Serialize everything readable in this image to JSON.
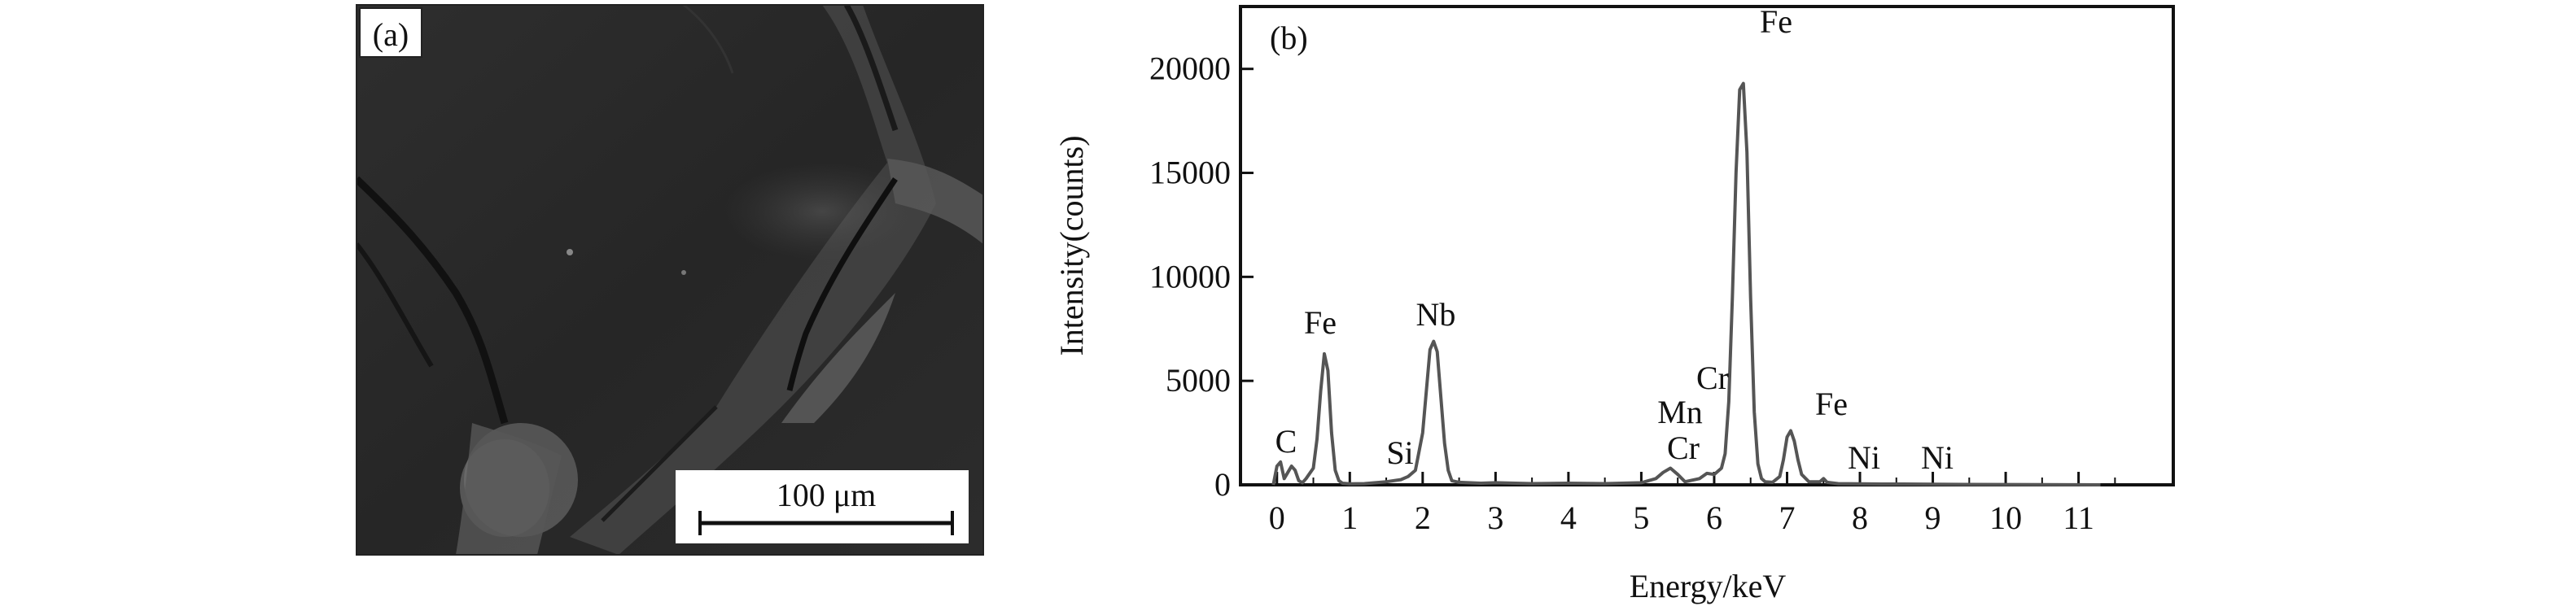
{
  "panel_a": {
    "label": "(a)",
    "scale_bar_label": "100 μm"
  },
  "panel_b": {
    "label": "(b)"
  },
  "chart_data": {
    "type": "line",
    "xlabel": "Energy/keV",
    "ylabel": "Intensity(counts)",
    "xlim": [
      -0.5,
      12.3
    ],
    "ylim": [
      0,
      23000
    ],
    "x_ticks": [
      0,
      1,
      2,
      3,
      4,
      5,
      6,
      7,
      8,
      9,
      10,
      11
    ],
    "y_ticks": [
      0,
      5000,
      10000,
      15000,
      20000
    ],
    "grid": false,
    "legend": "none",
    "series": [
      {
        "color": "#555555",
        "x": [
          -0.05,
          0.0,
          0.05,
          0.1,
          0.15,
          0.2,
          0.25,
          0.3,
          0.35,
          0.4,
          0.5,
          0.55,
          0.6,
          0.65,
          0.7,
          0.75,
          0.8,
          0.85,
          0.9,
          1.0,
          1.2,
          1.5,
          1.7,
          1.8,
          1.9,
          2.0,
          2.05,
          2.1,
          2.15,
          2.2,
          2.25,
          2.3,
          2.35,
          2.4,
          2.5,
          2.8,
          3.0,
          3.5,
          4.0,
          4.5,
          5.0,
          5.2,
          5.3,
          5.4,
          5.5,
          5.6,
          5.8,
          5.9,
          6.0,
          6.1,
          6.15,
          6.2,
          6.25,
          6.3,
          6.35,
          6.4,
          6.45,
          6.5,
          6.55,
          6.6,
          6.65,
          6.7,
          6.8,
          6.9,
          6.95,
          7.0,
          7.05,
          7.1,
          7.15,
          7.2,
          7.3,
          7.45,
          7.5,
          7.55,
          7.7,
          8.0,
          8.3,
          8.6,
          9.0,
          9.5,
          10.0,
          10.5,
          11.0,
          11.3
        ],
        "y": [
          0,
          900,
          1100,
          300,
          600,
          900,
          700,
          200,
          100,
          300,
          800,
          2200,
          4500,
          6300,
          5500,
          2500,
          700,
          200,
          80,
          50,
          60,
          150,
          250,
          400,
          700,
          2500,
          4500,
          6500,
          6900,
          6400,
          4200,
          2000,
          700,
          200,
          120,
          80,
          100,
          60,
          80,
          60,
          100,
          300,
          600,
          800,
          500,
          150,
          300,
          550,
          500,
          800,
          1500,
          4000,
          9000,
          15000,
          19000,
          19300,
          16000,
          9000,
          3500,
          1000,
          300,
          150,
          120,
          400,
          1200,
          2300,
          2600,
          2100,
          1200,
          500,
          150,
          150,
          300,
          120,
          60,
          50,
          40,
          40,
          30,
          20,
          15,
          10,
          5,
          0
        ]
      }
    ],
    "annotations": [
      "C",
      "Fe",
      "Si",
      "Nb",
      "Cr",
      "Mn",
      "Cr",
      "Fe",
      "Fe",
      "Ni",
      "Ni"
    ]
  }
}
